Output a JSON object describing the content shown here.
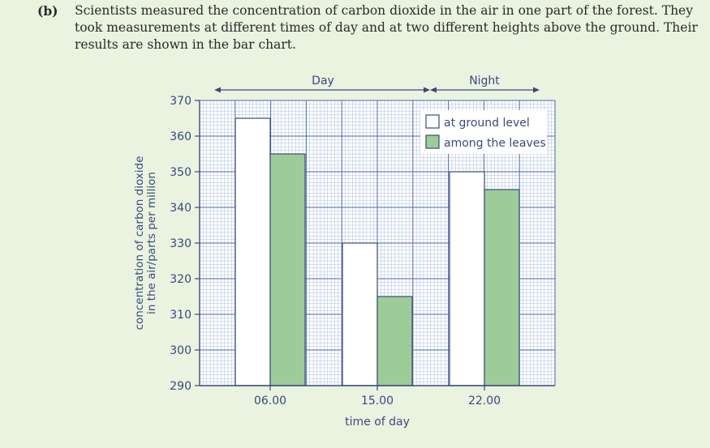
{
  "question": {
    "part_label": "(b)",
    "text": "Scientists measured the concentration of carbon dioxide in the air in one part of the forest. They took measurements at different times of day and at two different heights above the ground. Their results are shown in the bar chart."
  },
  "chart_data": {
    "type": "bar",
    "categories": [
      "06.00",
      "15.00",
      "22.00"
    ],
    "series": [
      {
        "name": "at ground level",
        "values": [
          365,
          330,
          350
        ],
        "color": "#ffffff"
      },
      {
        "name": "among the leaves",
        "values": [
          355,
          315,
          345
        ],
        "color": "#9ccc98"
      }
    ],
    "xlabel": "time of day",
    "ylabel_lines": [
      "concentration of carbon dioxide",
      "in the air/parts per million"
    ],
    "ylim": [
      290,
      370
    ],
    "yticks": [
      290,
      300,
      310,
      320,
      330,
      340,
      350,
      360,
      370
    ],
    "grid": true,
    "legend_position": "top-right",
    "period_labels": {
      "day": "Day",
      "night": "Night"
    },
    "colors": {
      "grid_minor": "#a8bde0",
      "grid_major": "#4a6aa8",
      "axis": "#3a4a7a",
      "bar_edge": "#3a4a7a"
    }
  }
}
